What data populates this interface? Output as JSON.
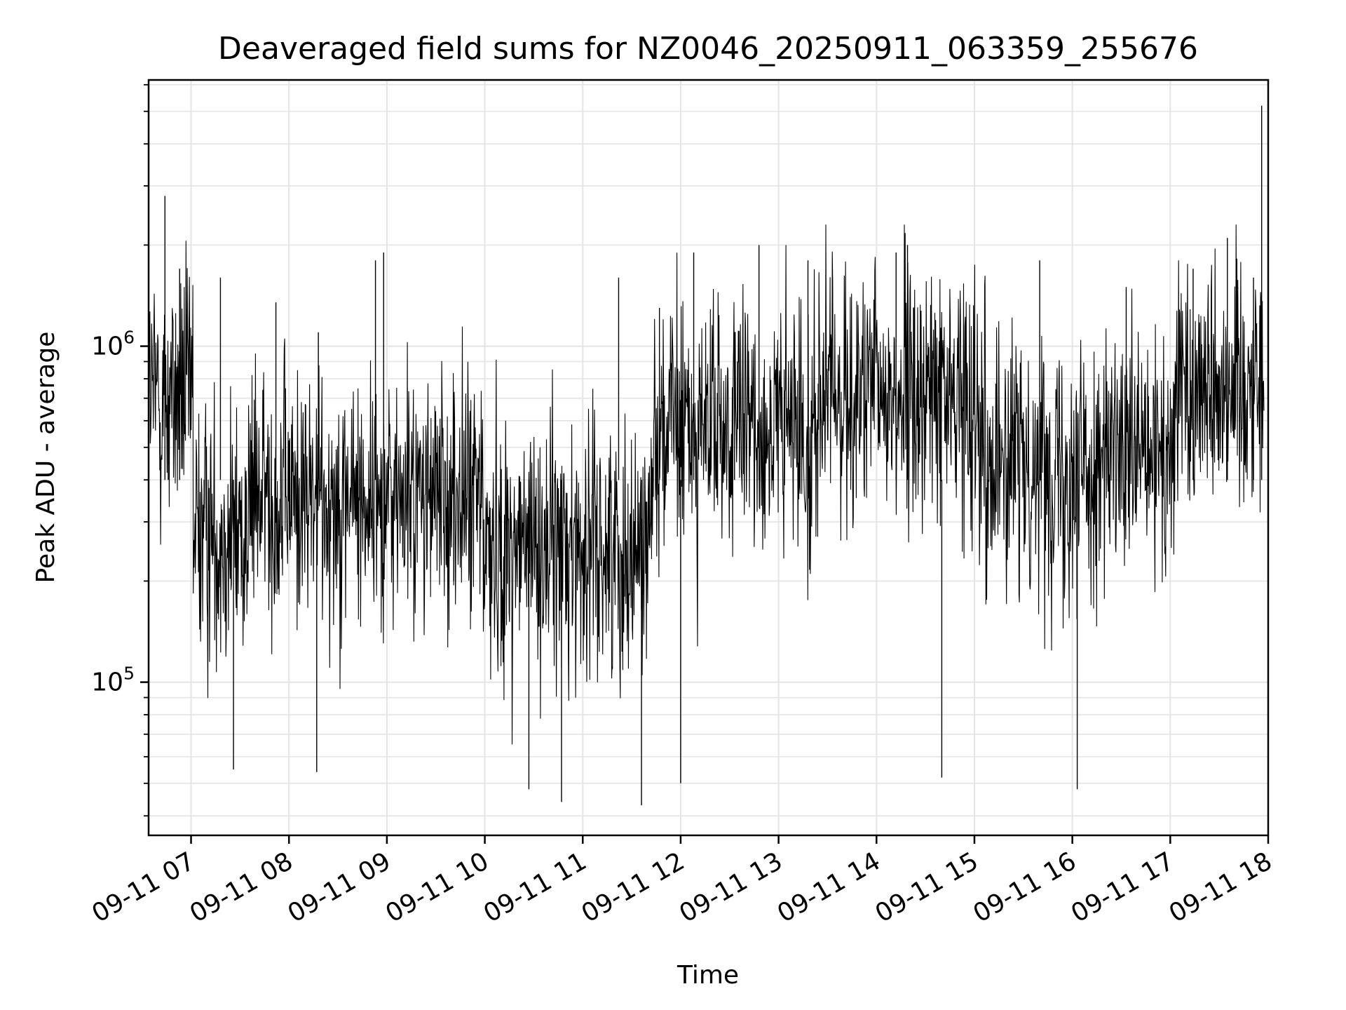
{
  "chart_data": {
    "type": "line",
    "title": "Deaveraged field sums for NZ0046_20250911_063359_255676",
    "xlabel": "Time",
    "ylabel": "Peak ADU - average",
    "yscale": "log",
    "ylim": [
      35000,
      6200000
    ],
    "xlim": [
      "2025-09-11T06:34:00",
      "2025-09-11T18:00:00"
    ],
    "x_ticks": [
      {
        "value": "2025-09-11T07:00:00",
        "label": "09-11 07"
      },
      {
        "value": "2025-09-11T08:00:00",
        "label": "09-11 08"
      },
      {
        "value": "2025-09-11T09:00:00",
        "label": "09-11 09"
      },
      {
        "value": "2025-09-11T10:00:00",
        "label": "09-11 10"
      },
      {
        "value": "2025-09-11T11:00:00",
        "label": "09-11 11"
      },
      {
        "value": "2025-09-11T12:00:00",
        "label": "09-11 12"
      },
      {
        "value": "2025-09-11T13:00:00",
        "label": "09-11 13"
      },
      {
        "value": "2025-09-11T14:00:00",
        "label": "09-11 14"
      },
      {
        "value": "2025-09-11T15:00:00",
        "label": "09-11 15"
      },
      {
        "value": "2025-09-11T16:00:00",
        "label": "09-11 16"
      },
      {
        "value": "2025-09-11T17:00:00",
        "label": "09-11 17"
      },
      {
        "value": "2025-09-11T18:00:00",
        "label": "09-11 18"
      }
    ],
    "y_ticks": [
      {
        "value": 100000,
        "base": "10",
        "exp": "5"
      },
      {
        "value": 1000000,
        "base": "10",
        "exp": "6"
      }
    ],
    "grid": true,
    "line_color": "#000000",
    "series": [
      {
        "x": [
          "2025-09-11T06:34:00",
          "2025-09-11T06:44:00",
          "2025-09-11T06:46:00",
          "2025-09-11T06:53:00",
          "2025-09-11T07:08:00",
          "2025-09-11T07:18:00",
          "2025-09-11T07:26:00",
          "2025-09-11T07:52:00",
          "2025-09-11T08:17:00",
          "2025-09-11T08:18:00",
          "2025-09-11T08:53:00",
          "2025-09-11T08:58:00",
          "2025-09-11T09:41:00",
          "2025-09-11T10:27:00",
          "2025-09-11T10:47:00",
          "2025-09-11T11:22:00",
          "2025-09-11T11:36:00",
          "2025-09-11T11:47:00",
          "2025-09-11T12:00:00",
          "2025-09-11T12:08:00",
          "2025-09-11T12:33:00",
          "2025-09-11T12:48:00",
          "2025-09-11T13:18:00",
          "2025-09-11T14:12:00",
          "2025-09-11T14:19:00",
          "2025-09-11T14:40:00",
          "2025-09-11T15:40:00",
          "2025-09-11T16:03:00",
          "2025-09-11T16:33:00",
          "2025-09-11T17:14:00",
          "2025-09-11T17:35:00",
          "2025-09-11T17:51:00",
          "2025-09-11T17:56:00",
          "2025-09-11T18:00:00"
        ],
        "y": [
          1000000,
          2800000,
          600000,
          1700000,
          300000,
          1600000,
          55000,
          1350000,
          54000,
          1100000,
          1800000,
          1900000,
          200000,
          48000,
          44000,
          1600000,
          43000,
          1300000,
          50000,
          1900000,
          1100000,
          2000000,
          1800000,
          1900000,
          2000000,
          52000,
          1800000,
          48000,
          1500000,
          1700000,
          2100000,
          1600000,
          5200000,
          350000
        ],
        "kind": "extremes"
      }
    ]
  }
}
